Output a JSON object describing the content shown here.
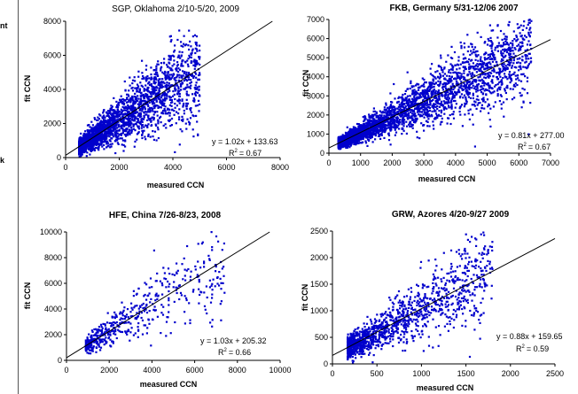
{
  "left_margin": {
    "fragments": [
      "nt",
      "k"
    ]
  },
  "chart_data": [
    {
      "type": "scatter",
      "title": "SGP, Oklahoma 2/10-5/20, 2009",
      "xlabel": "measured CCN",
      "ylabel": "fit CCN",
      "xlim": [
        0,
        8000
      ],
      "ylim": [
        0,
        8000
      ],
      "xticks": [
        0,
        2000,
        4000,
        6000,
        8000
      ],
      "yticks": [
        0,
        2000,
        4000,
        6000,
        8000
      ],
      "x_ticklabels": [
        "0",
        "2000",
        "4000",
        "6000",
        "8000"
      ],
      "y_ticklabels": [
        "0",
        "2000",
        "4000",
        "6000",
        "8000"
      ],
      "fit": {
        "slope": 1.02,
        "intercept": 133.63,
        "equation": "y = 1.02x + 133.63",
        "r2_label": "R",
        "r2_value": "= 0.67"
      },
      "point_color": "#0000cc",
      "grid": false,
      "legend": "none"
    },
    {
      "type": "scatter",
      "title": "FKB, Germany 5/31-12/06 2007",
      "xlabel": "measured CCN",
      "ylabel": "fit CCN",
      "xlim": [
        0,
        7000
      ],
      "ylim": [
        0,
        7000
      ],
      "xticks": [
        0,
        1000,
        2000,
        3000,
        4000,
        5000,
        6000,
        7000
      ],
      "yticks": [
        0,
        1000,
        2000,
        3000,
        4000,
        5000,
        6000,
        7000
      ],
      "x_ticklabels": [
        "0",
        "1000",
        "2000",
        "3000",
        "4000",
        "5000",
        "6000",
        "7000"
      ],
      "y_ticklabels": [
        "0",
        "1000",
        "2000",
        "3000",
        "4000",
        "5000",
        "6000",
        "7000"
      ],
      "fit": {
        "slope": 0.81,
        "intercept": 277.0,
        "equation": "y = 0.81x + 277.00",
        "r2_label": "R",
        "r2_value": "= 0.67"
      },
      "point_color": "#0000cc",
      "grid": false,
      "legend": "none"
    },
    {
      "type": "scatter",
      "title": "HFE, China 7/26-8/23, 2008",
      "xlabel": "measured CCN",
      "ylabel": "fit CCN",
      "xlim": [
        0,
        10000
      ],
      "ylim": [
        0,
        10000
      ],
      "xticks": [
        0,
        2000,
        4000,
        6000,
        8000,
        10000
      ],
      "yticks": [
        0,
        2000,
        4000,
        6000,
        8000,
        10000
      ],
      "x_ticklabels": [
        "0",
        "2000",
        "4000",
        "6000",
        "8000",
        "10000"
      ],
      "y_ticklabels": [
        "0",
        "2000",
        "4000",
        "6000",
        "8000",
        "10000"
      ],
      "fit": {
        "slope": 1.03,
        "intercept": 205.32,
        "equation": "y = 1.03x + 205.32",
        "r2_label": "R",
        "r2_value": "= 0.66"
      },
      "point_color": "#0000cc",
      "grid": false,
      "legend": "none"
    },
    {
      "type": "scatter",
      "title": "GRW, Azores 4/20-9/27 2009",
      "xlabel": "measured CCN",
      "ylabel": "fit CCN",
      "xlim": [
        0,
        2500
      ],
      "ylim": [
        0,
        2500
      ],
      "xticks": [
        0,
        500,
        1000,
        1500,
        2000,
        2500
      ],
      "yticks": [
        0,
        500,
        1000,
        1500,
        2000,
        2500
      ],
      "x_ticklabels": [
        "0",
        "500",
        "1000",
        "1500",
        "2000",
        "2500"
      ],
      "y_ticklabels": [
        "0",
        "500",
        "1000",
        "1500",
        "2000",
        "2500"
      ],
      "fit": {
        "slope": 0.88,
        "intercept": 159.65,
        "equation": "y = 0.88x + 159.65",
        "r2_label": "R",
        "r2_value": "= 0.59"
      },
      "point_color": "#0000cc",
      "grid": false,
      "legend": "none"
    }
  ]
}
